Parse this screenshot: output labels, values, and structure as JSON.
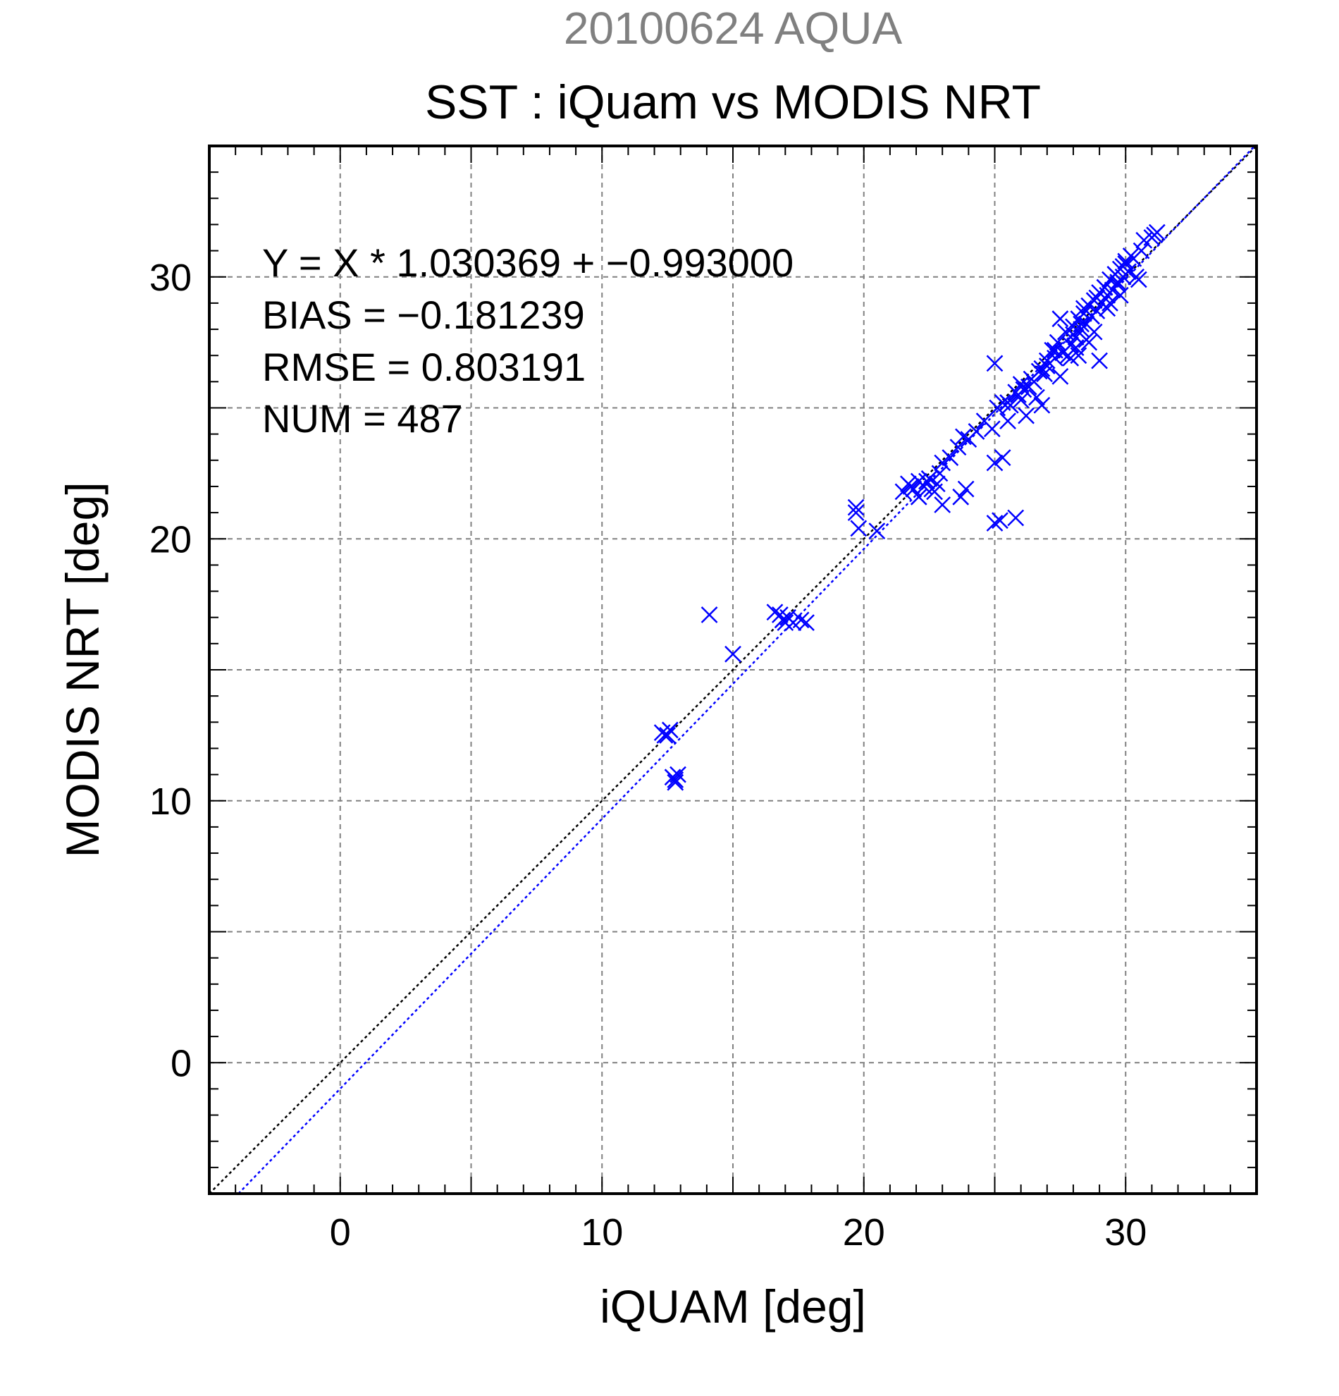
{
  "chart_data": {
    "type": "scatter",
    "supertitle": "20100624 AQUA",
    "title": "SST : iQuam vs MODIS NRT",
    "xlabel": "iQUAM [deg]",
    "ylabel": "MODIS NRT [deg]",
    "xlim": [
      -5,
      35
    ],
    "ylim": [
      -5,
      35
    ],
    "xticks": [
      0,
      10,
      20,
      30
    ],
    "yticks": [
      0,
      10,
      20,
      30
    ],
    "grid": true,
    "stats": {
      "fit": "Y = X * 1.030369 + −0.993000",
      "bias": "BIAS = −0.181239",
      "rmse": "RMSE = 0.803191",
      "num": "NUM = 487"
    },
    "fit_line": {
      "slope": 1.030369,
      "intercept": -0.993,
      "color": "#0000ff"
    },
    "identity_line": {
      "slope": 1,
      "intercept": 0,
      "color": "#000000"
    },
    "colors": {
      "supertitle": "#808080",
      "points": "#0000ff",
      "grid": "#808080"
    },
    "series": [
      {
        "marker": "x",
        "x": [
          12.3,
          12.5,
          12.6,
          12.4,
          12.8,
          12.9,
          12.8,
          12.7,
          14.1,
          15.0,
          16.6,
          16.8,
          16.9,
          17.0,
          17.1,
          17.3,
          17.6,
          17.8,
          19.7,
          19.8,
          19.7,
          20.5,
          21.5,
          21.7,
          21.9,
          22.1,
          22.3,
          22.5,
          22.6,
          22.8,
          22.9,
          23.0,
          22.1,
          21.8,
          22.4,
          22.7,
          23.0,
          23.3,
          23.6,
          23.8,
          24.0,
          24.3,
          24.6,
          24.9,
          25.1,
          25.0,
          23.7,
          23.9,
          25.0,
          25.2,
          25.3,
          25.8,
          25.0,
          25.5,
          25.8,
          26.0,
          26.3,
          26.5,
          26.6,
          26.9,
          25.3,
          25.6,
          25.9,
          26.1,
          26.4,
          26.7,
          27.0,
          27.3,
          27.6,
          27.9,
          28.1,
          28.3,
          28.5,
          28.7,
          28.9,
          29.1,
          29.3,
          29.5,
          29.7,
          29.9,
          30.1,
          27.2,
          27.4,
          27.7,
          28.0,
          28.2,
          28.4,
          28.6,
          28.8,
          29.0,
          29.2,
          29.4,
          29.6,
          29.8,
          30.0,
          30.3,
          30.6,
          27.8,
          28.0,
          28.3,
          28.7,
          28.9,
          29.2,
          29.6,
          29.9,
          30.2,
          27.0,
          27.5,
          28.1,
          28.5,
          29.0,
          29.4,
          29.8,
          30.4,
          31.0,
          31.2,
          30.7,
          28.6,
          27.9,
          28.4,
          26.8,
          27.3,
          27.5,
          28.2,
          28.8,
          29.3,
          29.7,
          30.0,
          30.5,
          31.1,
          25.5,
          26.2,
          26.0,
          26.8
        ],
        "y": [
          12.6,
          12.5,
          12.7,
          12.5,
          10.8,
          11.0,
          10.7,
          10.9,
          17.1,
          15.6,
          17.2,
          17.1,
          16.9,
          16.8,
          17.0,
          16.8,
          16.9,
          16.8,
          21.2,
          20.4,
          21.0,
          20.3,
          21.8,
          22.1,
          21.9,
          22.2,
          22.0,
          22.3,
          21.9,
          22.1,
          22.5,
          21.3,
          21.6,
          22.0,
          22.2,
          21.8,
          22.9,
          23.1,
          23.5,
          23.9,
          23.8,
          24.1,
          24.5,
          24.2,
          25.0,
          26.7,
          21.6,
          21.9,
          20.6,
          20.7,
          23.1,
          20.8,
          22.9,
          25.2,
          25.6,
          25.3,
          25.8,
          26.0,
          25.4,
          26.3,
          25.2,
          25.1,
          25.5,
          25.7,
          26.1,
          26.4,
          26.6,
          26.9,
          27.1,
          27.4,
          27.7,
          28.0,
          28.2,
          28.5,
          28.7,
          29.0,
          29.3,
          29.5,
          29.7,
          30.0,
          30.2,
          27.2,
          27.5,
          27.9,
          28.1,
          28.4,
          28.6,
          28.9,
          29.1,
          29.4,
          29.6,
          29.9,
          30.1,
          30.3,
          30.6,
          30.7,
          31.0,
          27.0,
          27.8,
          28.2,
          28.5,
          29.2,
          29.6,
          30.1,
          30.4,
          30.8,
          26.8,
          28.4,
          27.3,
          27.6,
          26.8,
          29.0,
          29.3,
          30.0,
          31.5,
          31.7,
          31.4,
          27.5,
          26.9,
          28.8,
          26.5,
          27.2,
          26.2,
          27.0,
          27.9,
          28.8,
          29.8,
          30.5,
          29.9,
          31.6,
          24.5,
          24.7,
          25.9,
          25.1
        ]
      }
    ]
  }
}
